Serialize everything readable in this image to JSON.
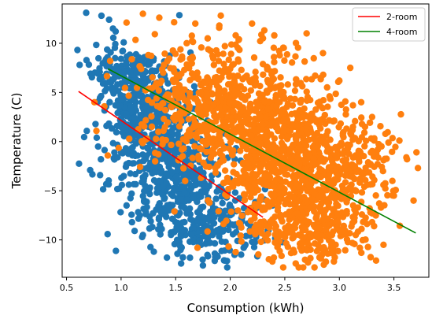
{
  "chart_data": {
    "type": "scatter",
    "title": "",
    "xlabel": "Consumption (kWh)",
    "ylabel": "Temperature (C)",
    "xlim": [
      0.46,
      3.82
    ],
    "ylim": [
      -13.8,
      14.0
    ],
    "xticks": [
      0.5,
      1.0,
      1.5,
      2.0,
      2.5,
      3.0,
      3.5
    ],
    "xtick_labels": [
      "0.5",
      "1.0",
      "1.5",
      "2.0",
      "2.5",
      "3.0",
      "3.5"
    ],
    "yticks": [
      -10,
      -5,
      0,
      5,
      10
    ],
    "ytick_labels": [
      "−10",
      "−5",
      "0",
      "5",
      "10"
    ],
    "grid": false,
    "legend_position": "top-right",
    "scatter_series": [
      {
        "color": "#1f77b4",
        "marker": "circle",
        "clusters": [
          {
            "center": [
              1.2,
              3.0
            ],
            "spread": [
              0.2,
              3.0
            ],
            "n": 340
          },
          {
            "center": [
              1.5,
              -3.0
            ],
            "spread": [
              0.24,
              3.3
            ],
            "n": 440
          },
          {
            "center": [
              1.85,
              -8.5
            ],
            "spread": [
              0.24,
              1.8
            ],
            "n": 200
          },
          {
            "center": [
              1.0,
              7.2
            ],
            "spread": [
              0.18,
              1.3
            ],
            "n": 90
          }
        ],
        "points": [
          [
            0.68,
            13.1
          ],
          [
            0.82,
            12.8
          ],
          [
            0.89,
            12.4
          ],
          [
            0.95,
            11.2
          ],
          [
            0.62,
            7.8
          ],
          [
            0.72,
            6.9
          ],
          [
            1.3,
            -11.2
          ],
          [
            1.55,
            -12.4
          ],
          [
            1.95,
            -12.1
          ],
          [
            2.1,
            -11.5
          ],
          [
            1.1,
            -8.2
          ],
          [
            1.2,
            -9.5
          ],
          [
            2.2,
            -10.2
          ],
          [
            2.25,
            -9.3
          ],
          [
            1.42,
            -11.8
          ],
          [
            1.75,
            -12.6
          ],
          [
            1.05,
            -6.5
          ],
          [
            0.98,
            -4.8
          ]
        ]
      },
      {
        "color": "#ff7f0e",
        "marker": "circle",
        "clusters": [
          {
            "center": [
              1.65,
              4.5
            ],
            "spread": [
              0.32,
              3.0
            ],
            "n": 260
          },
          {
            "center": [
              2.25,
              2.0
            ],
            "spread": [
              0.34,
              3.4
            ],
            "n": 560
          },
          {
            "center": [
              2.6,
              -3.5
            ],
            "spread": [
              0.34,
              3.2
            ],
            "n": 560
          },
          {
            "center": [
              2.75,
              -8.5
            ],
            "spread": [
              0.3,
              2.0
            ],
            "n": 240
          },
          {
            "center": [
              3.1,
              -2.5
            ],
            "spread": [
              0.25,
              2.5
            ],
            "n": 130
          }
        ],
        "points": [
          [
            1.2,
            13.0
          ],
          [
            1.35,
            12.6
          ],
          [
            1.05,
            12.1
          ],
          [
            1.68,
            12.0
          ],
          [
            1.9,
            11.8
          ],
          [
            2.05,
            10.8
          ],
          [
            2.3,
            10.5
          ],
          [
            3.45,
            -0.1
          ],
          [
            3.55,
            0.1
          ],
          [
            3.62,
            -1.8
          ],
          [
            3.68,
            -6.0
          ],
          [
            3.5,
            -5.5
          ],
          [
            3.4,
            -3.0
          ],
          [
            3.3,
            2.5
          ],
          [
            3.2,
            4.0
          ],
          [
            3.0,
            6.2
          ],
          [
            3.1,
            7.5
          ],
          [
            2.85,
            9.0
          ],
          [
            2.95,
            -12.2
          ],
          [
            2.6,
            -12.4
          ],
          [
            3.15,
            -9.5
          ],
          [
            3.3,
            -8.2
          ],
          [
            2.4,
            -11.8
          ],
          [
            1.7,
            -10.8
          ],
          [
            0.9,
            8.2
          ],
          [
            1.25,
            8.8
          ],
          [
            2.2,
            12.0
          ],
          [
            2.7,
            11.0
          ]
        ]
      }
    ],
    "series": [
      {
        "name": "2-room",
        "type": "line",
        "color": "#ff0000",
        "x": [
          0.61,
          2.3
        ],
        "y": [
          5.1,
          -7.7
        ]
      },
      {
        "name": "4-room",
        "type": "line",
        "color": "#008000",
        "x": [
          0.88,
          3.7
        ],
        "y": [
          7.4,
          -9.3
        ]
      }
    ]
  }
}
